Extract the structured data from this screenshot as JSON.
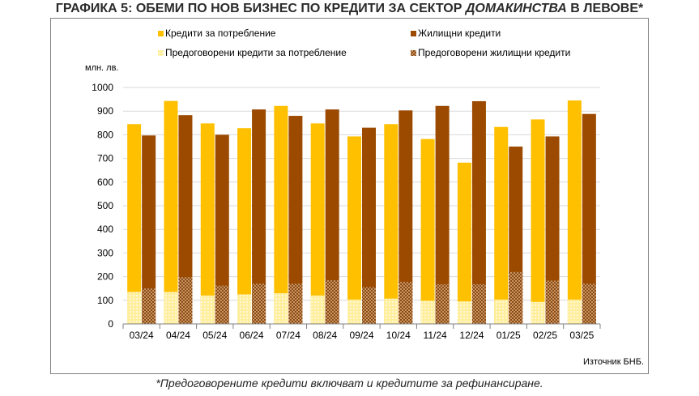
{
  "header": {
    "title_pre": "ГРАФИКА 5: ОБЕМИ ПО НОВ БИЗНЕС ПО КРЕДИТИ ЗА СЕКТОР ",
    "title_em": "ДОМАКИНСТВА",
    "title_post": " В ЛЕВОВЕ*"
  },
  "footnote": "*Предоговорените кредити включват и кредитите за рефинансиране.",
  "source": "Източник БНБ.",
  "colors": {
    "consumer": "#FFC000",
    "housing": "#9C4A00",
    "consumer_reneg_bg": "#FFEE9C",
    "consumer_reneg_fg": "#FFFFFF",
    "housing_reneg_bg": "#D9A878",
    "housing_reneg_fg": "#7A3800",
    "grid": "#D9D9D9",
    "axis": "#808080"
  },
  "chart_data": {
    "type": "bar",
    "stacked_groups": true,
    "ylabel": "млн. лв.",
    "ylim": [
      0,
      1000
    ],
    "yticks": [
      0,
      100,
      200,
      300,
      400,
      500,
      600,
      700,
      800,
      900,
      1000
    ],
    "grid": true,
    "legend_position": "top",
    "categories": [
      "03/24",
      "04/24",
      "05/24",
      "06/24",
      "07/24",
      "08/24",
      "09/24",
      "10/24",
      "11/24",
      "12/24",
      "01/25",
      "02/25",
      "03/25"
    ],
    "series": [
      {
        "name": "Кредити за потребление",
        "kind": "consumer",
        "values": [
          845,
          943,
          848,
          828,
          922,
          848,
          793,
          845,
          782,
          682,
          833,
          865,
          945
        ]
      },
      {
        "name": "Жилищни кредити",
        "kind": "housing",
        "values": [
          797,
          883,
          800,
          907,
          880,
          907,
          830,
          903,
          922,
          942,
          750,
          793,
          888
        ]
      },
      {
        "name": "Предоговорени кредити за потребление",
        "kind": "consumer_reneg",
        "values": [
          135,
          135,
          120,
          125,
          130,
          120,
          103,
          107,
          98,
          95,
          103,
          93,
          103
        ]
      },
      {
        "name": "Предоговорени жилищни кредити",
        "kind": "housing_reneg",
        "values": [
          150,
          198,
          162,
          170,
          170,
          185,
          155,
          178,
          168,
          168,
          220,
          183,
          170
        ]
      }
    ]
  }
}
